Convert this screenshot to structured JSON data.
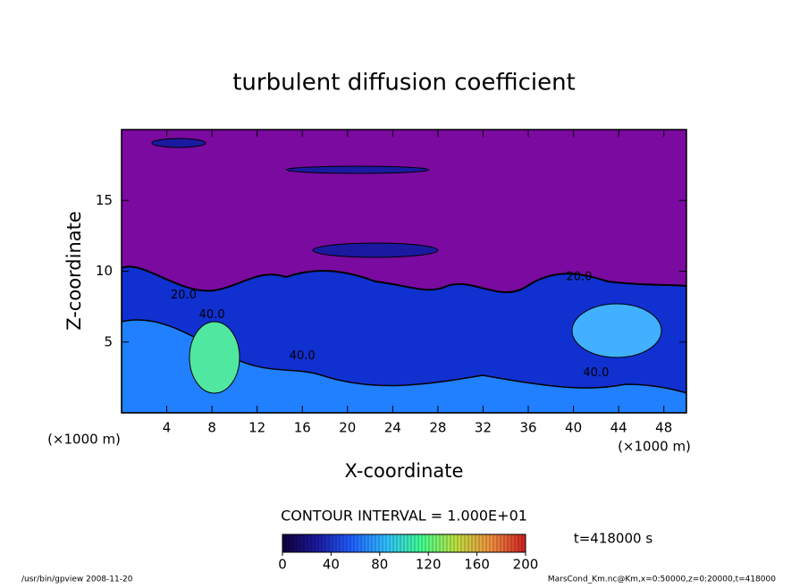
{
  "chart_data": {
    "type": "contour",
    "title": "turbulent diffusion coefficient",
    "x_label": "X-coordinate",
    "y_label": "Z-coordinate",
    "x_unit": "(×1000 m)",
    "xlim": [
      0,
      50
    ],
    "xticks": [
      4,
      8,
      12,
      16,
      20,
      24,
      28,
      32,
      36,
      40,
      44,
      48
    ],
    "ylim": [
      0,
      20
    ],
    "yticks": [
      5,
      10,
      15
    ],
    "contour_labels": [
      {
        "label": "20.0",
        "x": 40.5,
        "z": 9.6
      },
      {
        "label": "20.0",
        "x": 5.5,
        "z": 8.3
      },
      {
        "label": "40.0",
        "x": 8,
        "z": 6.9
      },
      {
        "label": "40.0",
        "x": 16,
        "z": 4.0
      },
      {
        "label": "40.0",
        "x": 42,
        "z": 2.8
      }
    ],
    "contour_interval": "CONTOUR INTERVAL = 1.000E+01",
    "colorbar": {
      "clim": [
        0,
        200
      ],
      "ticks": [
        0,
        40,
        80,
        120,
        160,
        200
      ],
      "colormap": [
        "#10003a",
        "#1a1aa0",
        "#2060ff",
        "#30c0ff",
        "#40ff90",
        "#c0e040",
        "#f09040",
        "#d02020"
      ]
    },
    "time_label": "t=418000 s",
    "footer_left": "/usr/bin/gpview  2008-11-20",
    "footer_right": "MarsCond_Km.nc@Km,x=0:50000,z=0:20000,t=418000"
  }
}
